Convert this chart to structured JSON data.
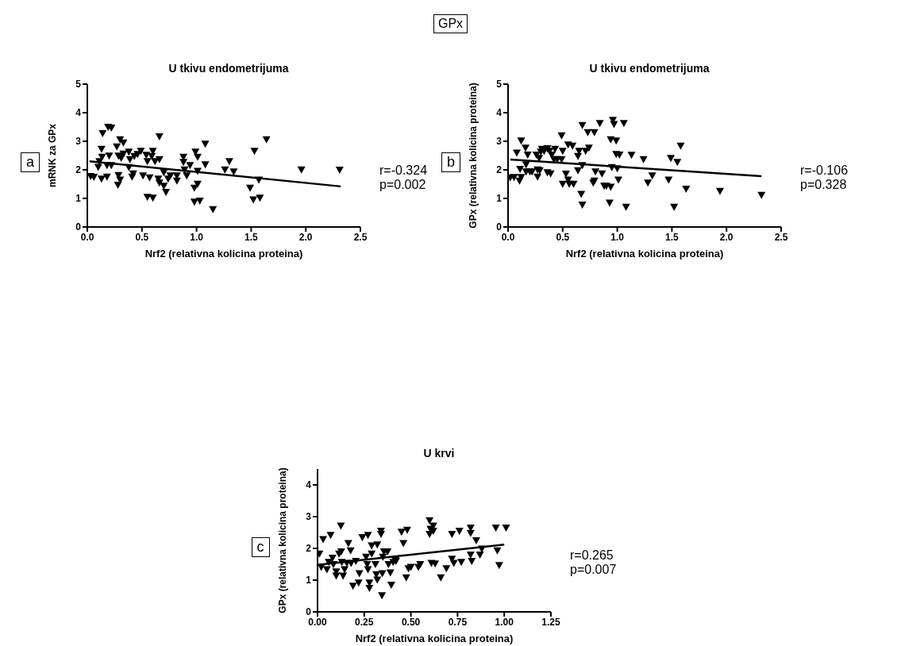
{
  "chart_data": [
    {
      "type": "other",
      "title": "GPx"
    },
    {
      "type": "scatter",
      "title": "U tkivu endometrijuma",
      "xlabel": "Nrf2 (relativna kolicina proteina)",
      "ylabel": "mRNK za GPx",
      "annotations": [
        "a",
        "r=-0.324",
        "p=0.002"
      ],
      "marker": "triangle",
      "xlim": [
        0,
        2.5
      ],
      "xticks": [
        {
          "value": 0,
          "label": "0.0"
        },
        {
          "value": 0.5,
          "label": "0.5"
        },
        {
          "value": 1,
          "label": "1.0"
        },
        {
          "value": 1.5,
          "label": "1.5"
        },
        {
          "value": 2,
          "label": "2.0"
        },
        {
          "value": 2.5,
          "label": "2.5"
        }
      ],
      "ylim": [
        0,
        5
      ],
      "yticks": [
        0,
        1,
        2,
        3,
        4,
        5
      ],
      "series": [
        {
          "type": "scatter",
          "color": "#000000",
          "x": [
            0.03,
            0.06,
            0.1,
            0.11,
            0.13,
            0.14,
            0.135,
            0.13,
            0.18,
            0.18,
            0.19,
            0.22,
            0.22,
            0.2,
            0.27,
            0.3,
            0.33,
            0.285,
            0.31,
            0.285,
            0.3,
            0.28,
            0.33,
            0.38,
            0.38,
            0.39,
            0.41,
            0.42,
            0.43,
            0.46,
            0.49,
            0.51,
            0.54,
            0.55,
            0.57,
            0.59,
            0.6,
            0.62,
            0.66,
            0.66,
            0.65,
            0.66,
            0.7,
            0.7,
            0.72,
            0.74,
            0.76,
            0.82,
            0.82,
            0.88,
            0.88,
            0.91,
            0.89,
            0.94,
            0.98,
            1.01,
            0.99,
            1.01,
            1.01,
            1.08,
            1.08,
            1.26,
            1.3,
            1.34,
            1.49,
            1.53,
            1.57,
            1.64,
            1.96,
            2.31,
            0.55,
            0.6,
            0.98,
            1.03,
            1.15,
            1.52,
            1.58
          ],
          "values": [
            1.78,
            1.75,
            2.1,
            2.3,
            2.73,
            3.28,
            2.45,
            1.69,
            1.76,
            2.16,
            3.5,
            3.47,
            2.16,
            2.49,
            2.81,
            3.06,
            2.95,
            2.49,
            2.42,
            1.81,
            1.65,
            1.47,
            2.56,
            2.63,
            2.09,
            2.37,
            1.76,
            1.87,
            2.48,
            2.55,
            2.66,
            1.8,
            2.52,
            2.3,
            1.73,
            2.48,
            2.66,
            2.3,
            3.17,
            2.37,
            1.69,
            1.55,
            1.44,
            1.91,
            1.22,
            1.69,
            1.8,
            1.62,
            1.8,
            2.45,
            2.27,
            1.8,
            2.01,
            2.16,
            1.37,
            1.51,
            2.63,
            2.45,
            1.96,
            2.19,
            2.91,
            2.01,
            2.3,
            1.94,
            1.37,
            2.66,
            1.65,
            3.06,
            2.01,
            2.0,
            1.05,
            1.02,
            0.88,
            0.92,
            0.62,
            0.96,
            1.02
          ]
        },
        {
          "type": "line",
          "color": "#000000",
          "x": [
            0.02,
            2.32
          ],
          "values": [
            2.3,
            1.42
          ],
          "marker": "none"
        }
      ]
    },
    {
      "type": "scatter",
      "title": "U tkivu endometrijuma",
      "xlabel": "Nrf2 (relativna kolicina proteina)",
      "ylabel": "GPx (relativna kolicina proteina)",
      "annotations": [
        "b",
        "r=-0.106",
        "p=0.328"
      ],
      "marker": "triangle",
      "xlim": [
        0,
        2.5
      ],
      "xticks": [
        {
          "value": 0,
          "label": "0.0"
        },
        {
          "value": 0.5,
          "label": "0.5"
        },
        {
          "value": 1,
          "label": "1.0"
        },
        {
          "value": 1.5,
          "label": "1.5"
        },
        {
          "value": 2,
          "label": "2.0"
        },
        {
          "value": 2.5,
          "label": "2.5"
        }
      ],
      "ylim": [
        0,
        5
      ],
      "yticks": [
        0,
        1,
        2,
        3,
        4,
        5
      ],
      "series": [
        {
          "type": "scatter",
          "color": "#000000",
          "x": [
            0.02,
            0.055,
            0.08,
            0.12,
            0.105,
            0.12,
            0.11,
            0.16,
            0.18,
            0.165,
            0.165,
            0.2,
            0.22,
            0.26,
            0.27,
            0.27,
            0.29,
            0.285,
            0.3,
            0.31,
            0.33,
            0.36,
            0.38,
            0.36,
            0.39,
            0.4,
            0.42,
            0.45,
            0.49,
            0.43,
            0.49,
            0.5,
            0.53,
            0.55,
            0.59,
            0.55,
            0.56,
            0.5,
            0.6,
            0.64,
            0.64,
            0.65,
            0.67,
            0.68,
            0.68,
            0.71,
            0.73,
            0.74,
            0.79,
            0.8,
            0.79,
            0.78,
            0.84,
            0.86,
            0.88,
            0.9,
            0.94,
            0.94,
            0.95,
            0.96,
            0.97,
            0.99,
            0.99,
            1.0,
            1.01,
            1.02,
            1.06,
            1.13,
            1.24,
            1.28,
            1.32,
            1.47,
            1.49,
            1.55,
            1.58,
            1.63,
            1.94,
            0.68,
            0.93,
            1.08,
            1.52,
            2.32
          ],
          "values": [
            1.73,
            1.74,
            2.6,
            3.02,
            1.62,
            1.74,
            2.03,
            2.77,
            2.53,
            2.19,
            1.94,
            1.94,
            1.94,
            2.53,
            2.01,
            1.76,
            1.98,
            2.41,
            2.63,
            2.73,
            2.66,
            2.75,
            2.66,
            1.91,
            1.87,
            2.53,
            2.37,
            2.37,
            2.37,
            2.73,
            3.2,
            2.66,
            1.86,
            2.88,
            2.84,
            1.65,
            1.51,
            1.51,
            1.51,
            1.98,
            2.48,
            2.66,
            1.15,
            2.16,
            3.56,
            2.66,
            3.31,
            2.77,
            3.31,
            1.94,
            1.62,
            1.55,
            3.63,
            1.87,
            1.44,
            1.44,
            1.4,
            3.06,
            2.09,
            3.74,
            3.6,
            3.02,
            2.55,
            2.05,
            1.65,
            2.53,
            3.63,
            2.52,
            2.37,
            1.55,
            1.8,
            1.65,
            2.41,
            2.27,
            2.84,
            1.33,
            1.26,
            0.78,
            0.85,
            0.7,
            0.7,
            1.12
          ]
        },
        {
          "type": "line",
          "color": "#000000",
          "x": [
            0.02,
            2.32
          ],
          "values": [
            2.36,
            1.78
          ],
          "marker": "none"
        }
      ]
    },
    {
      "type": "scatter",
      "title": "U krvi",
      "xlabel": "Nrf2 (relativna kolicina proteina)",
      "ylabel": "GPx (relativna kolicina proteina)",
      "annotations": [
        "c",
        "r=0.265",
        "p=0.007"
      ],
      "marker": "triangle",
      "xlim": [
        0,
        1.25
      ],
      "xticks": [
        {
          "value": 0,
          "label": "0.00"
        },
        {
          "value": 0.25,
          "label": "0.25"
        },
        {
          "value": 0.5,
          "label": "0.50"
        },
        {
          "value": 0.75,
          "label": "0.75"
        },
        {
          "value": 1,
          "label": "1.00"
        },
        {
          "value": 1.25,
          "label": "1.25"
        }
      ],
      "ylim": [
        0,
        4.5
      ],
      "yticks": [
        0,
        1,
        2,
        3,
        4
      ],
      "series": [
        {
          "type": "scatter",
          "color": "#000000",
          "x": [
            0.01,
            0.03,
            0.02,
            0.05,
            0.06,
            0.07,
            0.08,
            0.085,
            0.1,
            0.1,
            0.115,
            0.125,
            0.127,
            0.13,
            0.137,
            0.145,
            0.157,
            0.165,
            0.177,
            0.18,
            0.19,
            0.205,
            0.22,
            0.224,
            0.24,
            0.26,
            0.266,
            0.27,
            0.27,
            0.278,
            0.278,
            0.29,
            0.29,
            0.31,
            0.315,
            0.32,
            0.32,
            0.34,
            0.34,
            0.345,
            0.347,
            0.35,
            0.356,
            0.375,
            0.38,
            0.39,
            0.395,
            0.405,
            0.417,
            0.42,
            0.45,
            0.46,
            0.48,
            0.475,
            0.487,
            0.5,
            0.54,
            0.55,
            0.6,
            0.605,
            0.6,
            0.62,
            0.62,
            0.61,
            0.63,
            0.66,
            0.69,
            0.72,
            0.72,
            0.73,
            0.76,
            0.77,
            0.82,
            0.82,
            0.82,
            0.826,
            0.85,
            0.87,
            0.88,
            0.955,
            0.963,
            0.973,
            1.01
          ],
          "values": [
            1.83,
            2.29,
            1.41,
            1.34,
            1.57,
            2.42,
            1.7,
            1.5,
            1.14,
            1.27,
            1.83,
            2.71,
            1.9,
            1.57,
            1.14,
            1.34,
            1.54,
            2.16,
            1.93,
            1.54,
            0.82,
            1.6,
            0.92,
            1.21,
            2.35,
            1.73,
            1.5,
            1.34,
            2.42,
            0.92,
            0.75,
            1.83,
            2.09,
            1.5,
            1.18,
            2.12,
            1.01,
            2.55,
            2.45,
            0.52,
            1.21,
            1.73,
            1.9,
            1.9,
            1.5,
            1.24,
            0.85,
            1.57,
            1.63,
            1.6,
            2.52,
            2.16,
            2.58,
            1.08,
            1.37,
            1.41,
            1.41,
            1.5,
            2.88,
            2.61,
            2.45,
            2.71,
            2.55,
            1.54,
            1.52,
            1.08,
            1.37,
            2.45,
            1.67,
            1.54,
            2.55,
            1.57,
            2.65,
            2.48,
            1.8,
            1.6,
            2.25,
            1.8,
            1.99,
            2.65,
            1.93,
            1.47,
            2.65
          ]
        },
        {
          "type": "line",
          "color": "#000000",
          "x": [
            0,
            1.0
          ],
          "values": [
            1.48,
            2.12
          ],
          "marker": "none"
        }
      ]
    }
  ]
}
